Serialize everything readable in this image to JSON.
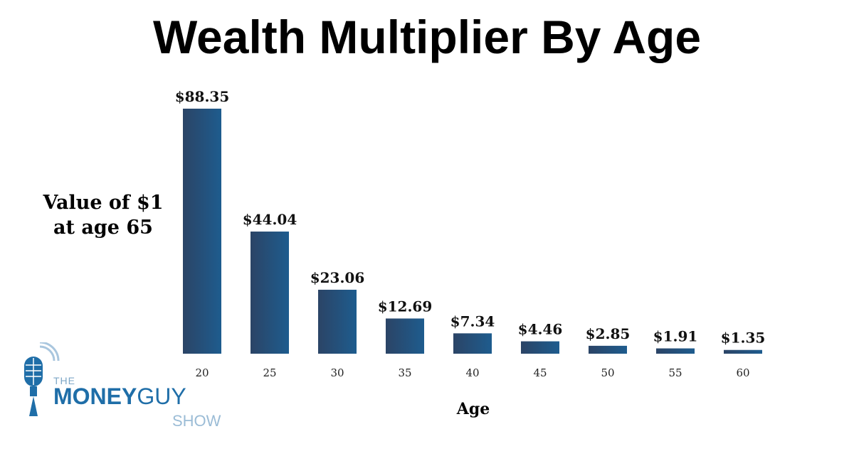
{
  "chart_data": {
    "type": "bar",
    "title": "Wealth Multiplier By Age",
    "ylabel_lines": [
      "Value of $1",
      "at age 65"
    ],
    "xlabel": "Age",
    "categories": [
      "20",
      "25",
      "30",
      "35",
      "40",
      "45",
      "50",
      "55",
      "60"
    ],
    "values": [
      88.35,
      44.04,
      23.06,
      12.69,
      7.34,
      4.46,
      2.85,
      1.91,
      1.35
    ],
    "value_labels": [
      "$88.35",
      "$44.04",
      "$23.06",
      "$12.69",
      "$7.34",
      "$4.46",
      "$2.85",
      "$1.91",
      "$1.35"
    ],
    "ylim": [
      0,
      88.35
    ],
    "grid": false,
    "bar_color_left": "#2b4466",
    "bar_color_right": "#1e5c8e"
  },
  "logo": {
    "the": "THE",
    "money": "MONEY",
    "guy": "GUY",
    "show": "SHOW"
  }
}
